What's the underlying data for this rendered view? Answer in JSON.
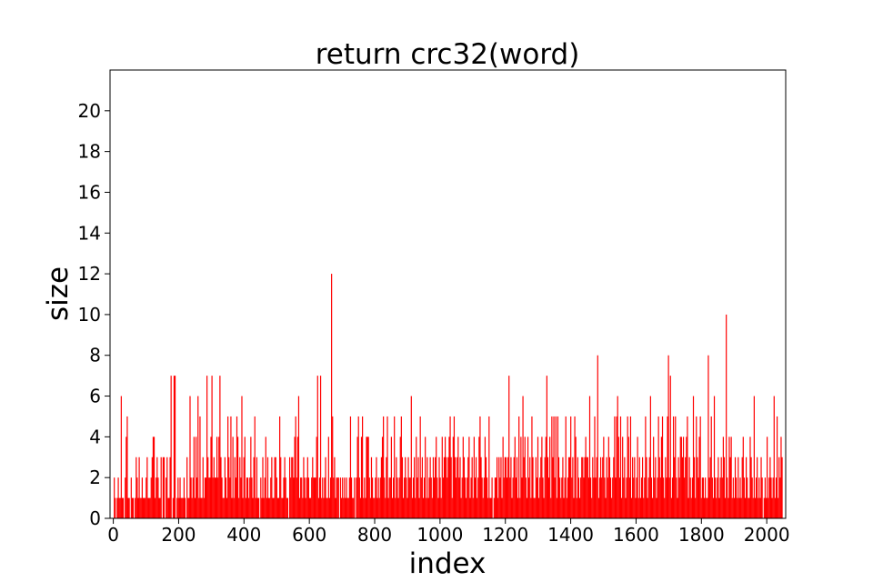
{
  "chart_data": {
    "type": "bar",
    "title": "return crc32(word)",
    "xlabel": "index",
    "ylabel": "size",
    "xlim": [
      -10,
      2058
    ],
    "ylim": [
      0,
      22
    ],
    "x_ticks": [
      0,
      200,
      400,
      600,
      800,
      1000,
      1200,
      1400,
      1600,
      1800,
      2000
    ],
    "y_ticks": [
      0,
      2,
      4,
      6,
      8,
      10,
      12,
      14,
      16,
      18,
      20
    ],
    "bar_color": "#ff0000",
    "grid": false,
    "legend": "none",
    "series": [
      {
        "values": [
          0,
          2,
          1,
          0,
          1,
          2,
          1,
          1,
          6,
          1,
          1,
          0,
          2,
          4,
          5,
          1,
          1,
          0,
          2,
          1,
          1,
          0,
          1,
          3,
          2,
          1,
          3,
          1,
          1,
          2,
          1,
          1,
          1,
          2,
          3,
          1,
          1,
          1,
          2,
          3,
          4,
          4,
          1,
          2,
          3,
          2,
          1,
          1,
          3,
          0,
          3,
          3,
          0,
          2,
          3,
          1,
          1,
          3,
          7,
          0,
          1,
          7,
          7,
          0,
          1,
          2,
          1,
          2,
          1,
          1,
          1,
          2,
          1,
          0,
          3,
          1,
          1,
          6,
          2,
          1,
          2,
          4,
          1,
          4,
          2,
          6,
          1,
          5,
          1,
          1,
          3,
          1,
          2,
          2,
          7,
          3,
          2,
          2,
          4,
          7,
          2,
          3,
          2,
          2,
          4,
          2,
          4,
          7,
          3,
          2,
          1,
          1,
          3,
          2,
          1,
          5,
          3,
          2,
          5,
          1,
          4,
          1,
          3,
          2,
          5,
          4,
          1,
          3,
          2,
          6,
          1,
          3,
          4,
          1,
          2,
          2,
          1,
          2,
          4,
          2,
          1,
          3,
          5,
          1,
          3,
          1,
          1,
          0,
          2,
          1,
          3,
          1,
          2,
          4,
          1,
          3,
          1,
          1,
          2,
          3,
          1,
          1,
          3,
          3,
          2,
          1,
          1,
          5,
          3,
          1,
          1,
          2,
          3,
          2,
          1,
          1,
          0,
          3,
          2,
          3,
          3,
          2,
          4,
          5,
          2,
          4,
          6,
          1,
          2,
          2,
          1,
          3,
          2,
          1,
          2,
          3,
          2,
          1,
          1,
          2,
          3,
          2,
          2,
          2,
          4,
          7,
          1,
          2,
          7,
          1,
          2,
          1,
          2,
          3,
          1,
          1,
          4,
          1,
          2,
          12,
          5,
          2,
          3,
          1,
          2,
          2,
          2,
          0,
          2,
          1,
          2,
          1,
          2,
          1,
          2,
          1,
          1,
          2,
          5,
          2,
          1,
          1,
          2,
          0,
          2,
          4,
          5,
          2,
          1,
          4,
          5,
          1,
          2,
          1,
          4,
          4,
          4,
          2,
          1,
          3,
          2,
          1,
          1,
          2,
          3,
          1,
          2,
          1,
          2,
          3,
          4,
          5,
          2,
          1,
          3,
          5,
          1,
          2,
          2,
          4,
          1,
          2,
          5,
          1,
          3,
          2,
          1,
          2,
          4,
          5,
          3,
          1,
          2,
          3,
          2,
          1,
          3,
          2,
          2,
          6,
          1,
          2,
          3,
          1,
          4,
          2,
          3,
          1,
          5,
          2,
          3,
          1,
          2,
          4,
          1,
          3,
          1,
          2,
          3,
          2,
          1,
          3,
          2,
          3,
          4,
          2,
          1,
          3,
          2,
          1,
          4,
          2,
          3,
          4,
          3,
          2,
          3,
          4,
          5,
          3,
          1,
          4,
          5,
          3,
          2,
          3,
          4,
          2,
          3,
          1,
          2,
          4,
          3,
          2,
          1,
          2,
          3,
          4,
          1,
          2,
          3,
          1,
          4,
          2,
          3,
          1,
          2,
          4,
          5,
          3,
          2,
          1,
          2,
          4,
          3,
          2,
          1,
          5,
          1,
          1,
          2,
          0,
          1,
          2,
          2,
          3,
          1,
          3,
          2,
          3,
          1,
          4,
          2,
          3,
          3,
          2,
          3,
          7,
          2,
          3,
          1,
          2,
          3,
          4,
          2,
          3,
          1,
          5,
          1,
          4,
          2,
          6,
          3,
          4,
          2,
          1,
          4,
          2,
          3,
          1,
          5,
          3,
          1,
          1,
          3,
          2,
          4,
          1,
          2,
          3,
          4,
          2,
          1,
          3,
          4,
          7,
          3,
          2,
          4,
          1,
          5,
          3,
          5,
          2,
          5,
          1,
          5,
          3,
          2,
          1,
          2,
          3,
          1,
          2,
          5,
          1,
          2,
          3,
          3,
          5,
          2,
          3,
          1,
          5,
          4,
          1,
          3,
          2,
          1,
          2,
          3,
          3,
          2,
          3,
          4,
          3,
          3,
          2,
          6,
          2,
          1,
          3,
          2,
          5,
          2,
          3,
          8,
          1,
          2,
          3,
          2,
          3,
          4,
          2,
          1,
          3,
          2,
          4,
          3,
          2,
          1,
          2,
          3,
          5,
          2,
          5,
          6,
          4,
          2,
          5,
          1,
          4,
          2,
          3,
          1,
          2,
          5,
          4,
          2,
          5,
          1,
          3,
          2,
          3,
          1,
          2,
          4,
          1,
          3,
          1,
          2,
          3,
          1,
          2,
          5,
          3,
          1,
          2,
          3,
          6,
          2,
          1,
          4,
          2,
          3,
          1,
          2,
          5,
          3,
          2,
          4,
          5,
          2,
          1,
          3,
          2,
          5,
          8,
          2,
          7,
          1,
          2,
          5,
          3,
          5,
          2,
          1,
          3,
          2,
          4,
          4,
          3,
          4,
          2,
          3,
          4,
          5,
          1,
          3,
          2,
          1,
          2,
          6,
          3,
          1,
          5,
          3,
          2,
          4,
          5,
          1,
          2,
          2,
          1,
          2,
          1,
          1,
          8,
          2,
          3,
          5,
          2,
          1,
          6,
          2,
          1,
          2,
          3,
          1,
          2,
          3,
          2,
          4,
          3,
          1,
          10,
          2,
          1,
          4,
          3,
          4,
          1,
          2,
          1,
          3,
          2,
          1,
          3,
          1,
          2,
          1,
          3,
          4,
          2,
          1,
          3,
          2,
          1,
          1,
          4,
          3,
          2,
          1,
          6,
          1,
          2,
          3,
          1,
          2,
          1,
          3,
          2,
          0,
          1,
          2,
          1,
          4,
          1,
          2,
          3,
          2,
          1,
          2,
          6,
          1,
          2,
          5,
          1,
          3,
          2,
          4,
          3
        ]
      }
    ]
  }
}
